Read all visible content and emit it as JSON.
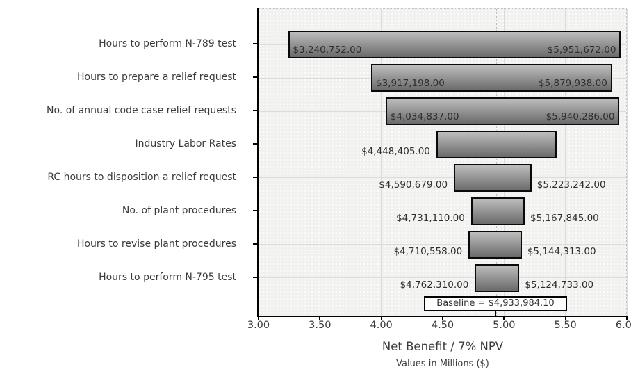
{
  "chart_data": {
    "type": "bar",
    "subtype": "tornado-sensitivity",
    "orientation": "horizontal",
    "title": "",
    "xlabel": "Net Benefit / 7% NPV",
    "xlabel_sub": "Values in Millions ($)",
    "xlim": [
      3.0,
      6.0
    ],
    "xticks": [
      "3.00",
      "3.50",
      "4.00",
      "4.50",
      "5.00",
      "5.50",
      "6.00"
    ],
    "grid": true,
    "legend": "none",
    "baseline": {
      "label": "Baseline = $4,933,984.10",
      "value_millions": 4.9339841
    },
    "bars": [
      {
        "category": "Hours to perform N-789 test",
        "low_millions": 3.240752,
        "high_millions": 5.951672,
        "low_label": "$3,240,752.00",
        "high_label": "$5,951,672.00",
        "value_labels": "inside"
      },
      {
        "category": "Hours to prepare a relief request",
        "low_millions": 3.917198,
        "high_millions": 5.879938,
        "low_label": "$3,917,198.00",
        "high_label": "$5,879,938.00",
        "value_labels": "inside"
      },
      {
        "category": "No. of annual code case relief requests",
        "low_millions": 4.034837,
        "high_millions": 5.940286,
        "low_label": "$4,034,837.00",
        "high_label": "$5,940,286.00",
        "value_labels": "inside"
      },
      {
        "category": "Industry Labor Rates",
        "low_millions": 4.448405,
        "high_millions": 5.43,
        "low_label": "$4,448,405.00",
        "high_label": "",
        "value_labels": "outside"
      },
      {
        "category": "RC hours to disposition a relief request",
        "low_millions": 4.590679,
        "high_millions": 5.223242,
        "low_label": "$4,590,679.00",
        "high_label": "$5,223,242.00",
        "value_labels": "outside"
      },
      {
        "category": "No. of plant procedures",
        "low_millions": 4.73111,
        "high_millions": 5.167845,
        "low_label": "$4,731,110.00",
        "high_label": "$5,167,845.00",
        "value_labels": "outside"
      },
      {
        "category": "Hours to revise plant procedures",
        "low_millions": 4.710558,
        "high_millions": 5.144313,
        "low_label": "$4,710,558.00",
        "high_label": "$5,144,313.00",
        "value_labels": "outside"
      },
      {
        "category": "Hours to perform N-795 test",
        "low_millions": 4.76231,
        "high_millions": 5.124733,
        "low_label": "$4,762,310.00",
        "high_label": "$5,124,733.00",
        "value_labels": "outside"
      }
    ],
    "colors": {
      "bar_gradient_top": "#bdbdbd",
      "bar_gradient_bottom": "#6a6a6a",
      "bar_border": "#0a0a0a",
      "plot_background": "#f1f1f0",
      "gridline": "#dcdcdc",
      "text": "#3b3b3b",
      "baseline_box_background": "#ffffff"
    }
  }
}
